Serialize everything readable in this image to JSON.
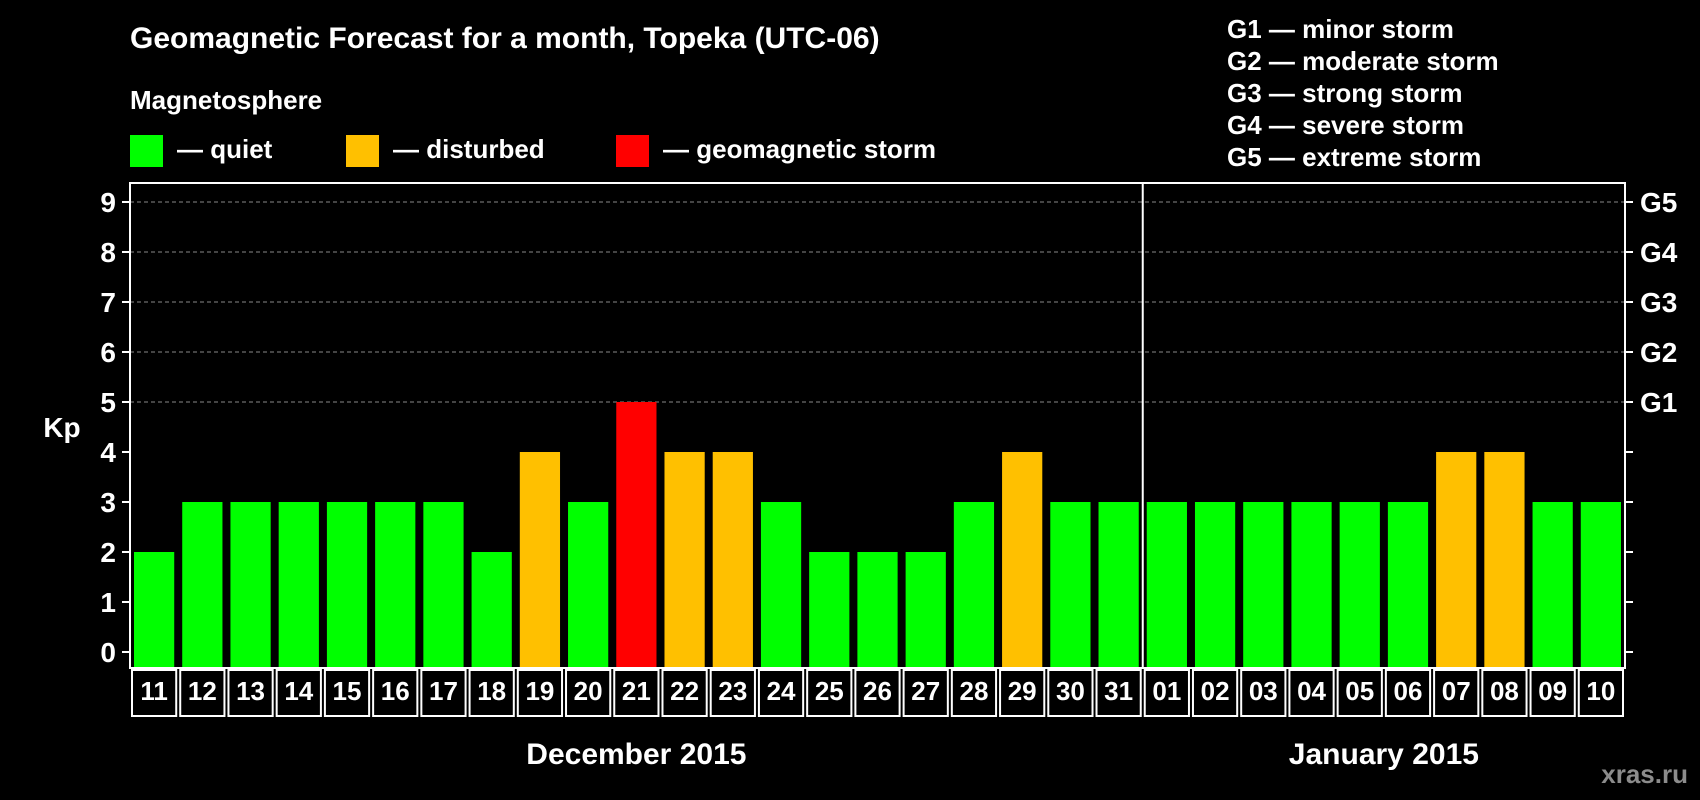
{
  "title": "Geomagnetic Forecast for a month, Topeka (UTC-06)",
  "legend": {
    "heading": "Magnetosphere",
    "items": [
      {
        "label": "— quiet",
        "color": "#00ff00"
      },
      {
        "label": "— disturbed",
        "color": "#ffc000"
      },
      {
        "label": "— geomagnetic storm",
        "color": "#ff0000"
      }
    ]
  },
  "storm_legend": [
    "G1 — minor storm",
    "G2 — moderate storm",
    "G3 — strong storm",
    "G4 — severe storm",
    "G5 — extreme storm"
  ],
  "watermark": "xras.ru",
  "colors": {
    "quiet": "#00ff00",
    "disturbed": "#ffc000",
    "storm": "#ff0000",
    "background": "#000000",
    "axis": "#ffffff",
    "grid": "#888888"
  },
  "chart_data": {
    "type": "bar",
    "title": "Geomagnetic Forecast for a month, Topeka (UTC-06)",
    "ylabel": "Kp",
    "xlabel": "",
    "ylim": [
      0,
      9
    ],
    "yticks": [
      "0",
      "1",
      "2",
      "3",
      "4",
      "5",
      "6",
      "7",
      "8",
      "9"
    ],
    "right_ticks": [
      {
        "value": 5,
        "label": "G1"
      },
      {
        "value": 6,
        "label": "G2"
      },
      {
        "value": 7,
        "label": "G3"
      },
      {
        "value": 8,
        "label": "G4"
      },
      {
        "value": 9,
        "label": "G5"
      }
    ],
    "grid": {
      "horizontal_dashed_from": 5
    },
    "categories": [
      "11",
      "12",
      "13",
      "14",
      "15",
      "16",
      "17",
      "18",
      "19",
      "20",
      "21",
      "22",
      "23",
      "24",
      "25",
      "26",
      "27",
      "28",
      "29",
      "30",
      "31",
      "01",
      "02",
      "03",
      "04",
      "05",
      "06",
      "07",
      "08",
      "09",
      "10"
    ],
    "values": [
      2,
      3,
      3,
      3,
      3,
      3,
      3,
      2,
      4,
      3,
      5,
      4,
      4,
      3,
      2,
      2,
      2,
      3,
      4,
      3,
      3,
      3,
      3,
      3,
      3,
      3,
      3,
      4,
      4,
      3,
      3
    ],
    "levels": [
      "quiet",
      "quiet",
      "quiet",
      "quiet",
      "quiet",
      "quiet",
      "quiet",
      "quiet",
      "disturbed",
      "quiet",
      "storm",
      "disturbed",
      "disturbed",
      "quiet",
      "quiet",
      "quiet",
      "quiet",
      "quiet",
      "disturbed",
      "quiet",
      "quiet",
      "quiet",
      "quiet",
      "quiet",
      "quiet",
      "quiet",
      "quiet",
      "disturbed",
      "disturbed",
      "quiet",
      "quiet"
    ],
    "months": [
      {
        "label": "December 2015",
        "first_index": 0,
        "last_index": 20
      },
      {
        "label": "January 2015",
        "first_index": 21,
        "last_index": 30
      }
    ]
  }
}
